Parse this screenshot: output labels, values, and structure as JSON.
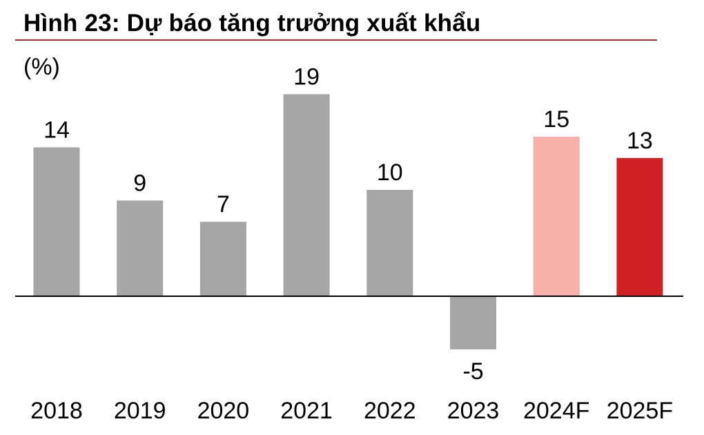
{
  "title": "Hình 23: Dự báo tăng trưởng xuất khẩu",
  "unit_label": "(%)",
  "colors": {
    "rule": "#d11f26",
    "actual": "#a6a6a6",
    "forecast_2024": "#f7b1aa",
    "forecast_2025": "#d11f26",
    "axis": "#000000"
  },
  "chart_data": {
    "type": "bar",
    "categories": [
      "2018",
      "2019",
      "2020",
      "2021",
      "2022",
      "2023",
      "2024F",
      "2025F"
    ],
    "values": [
      14,
      9,
      7,
      19,
      10,
      -5,
      15,
      13
    ],
    "data_labels": [
      "14",
      "9",
      "7",
      "19",
      "10",
      "-5",
      "15",
      "13"
    ],
    "bar_colors": [
      "#a6a6a6",
      "#a6a6a6",
      "#a6a6a6",
      "#a6a6a6",
      "#a6a6a6",
      "#a6a6a6",
      "#f7b1aa",
      "#d11f26"
    ],
    "title": "Hình 23: Dự báo tăng trưởng xuất khẩu",
    "xlabel": "",
    "ylabel": "(%)",
    "grid": false,
    "legend": "none"
  }
}
